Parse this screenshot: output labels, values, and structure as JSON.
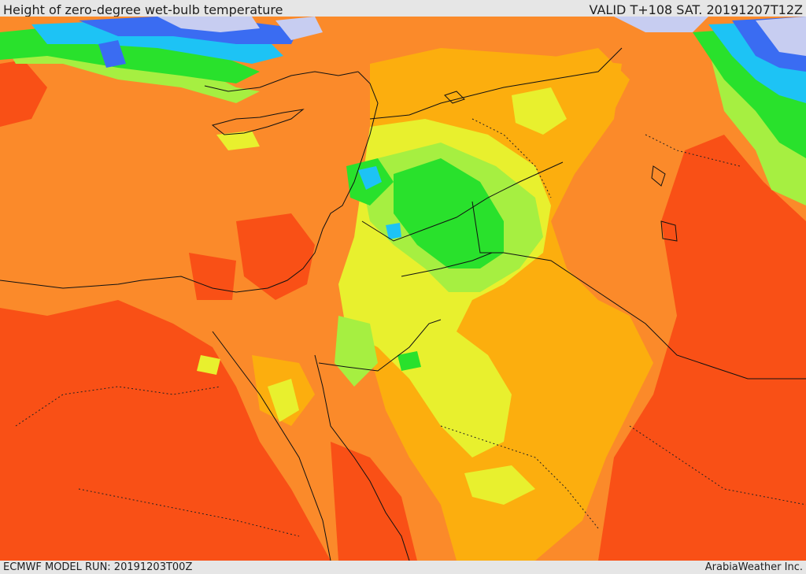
{
  "header": {
    "title": "Height of zero-degree wet-bulb temperature",
    "valid": "VALID T+108 SAT. 20191207T12Z"
  },
  "footer": {
    "model_run": "ECMWF MODEL RUN: 20191203T00Z",
    "credit": "ArabiaWeather Inc."
  },
  "map": {
    "region": "Eastern Mediterranean and Middle East",
    "layer": "zero-degree wet-bulb height color fill",
    "colors": {
      "deep_orange": "#f95016",
      "orange": "#fb8a2a",
      "amber": "#fcae0e",
      "yellow": "#e8f02e",
      "lime": "#a6ef41",
      "green": "#29e12c",
      "cyan": "#1dc3f5",
      "blue": "#3a6cf2",
      "lavender": "#c7cdf1",
      "white": "#f0f3ff"
    }
  }
}
